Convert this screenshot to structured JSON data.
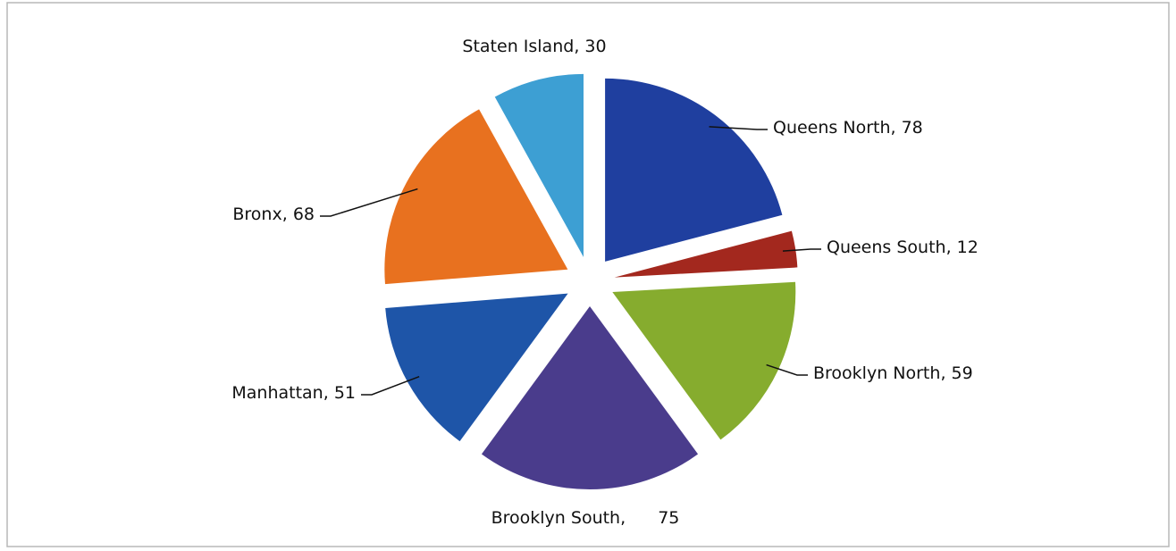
{
  "chart_data": {
    "type": "pie",
    "categories": [
      "Queens North",
      "Queens South",
      "Brooklyn North",
      "Brooklyn South",
      "Manhattan",
      "Bronx",
      "Staten Island"
    ],
    "values": [
      78,
      12,
      59,
      75,
      51,
      68,
      30
    ],
    "colors": [
      "#1f3f9f",
      "#a3281e",
      "#86ac2e",
      "#4a3c8c",
      "#1e55a8",
      "#e8711f",
      "#3d9fd3"
    ],
    "separator": ", ",
    "exploded": true
  }
}
